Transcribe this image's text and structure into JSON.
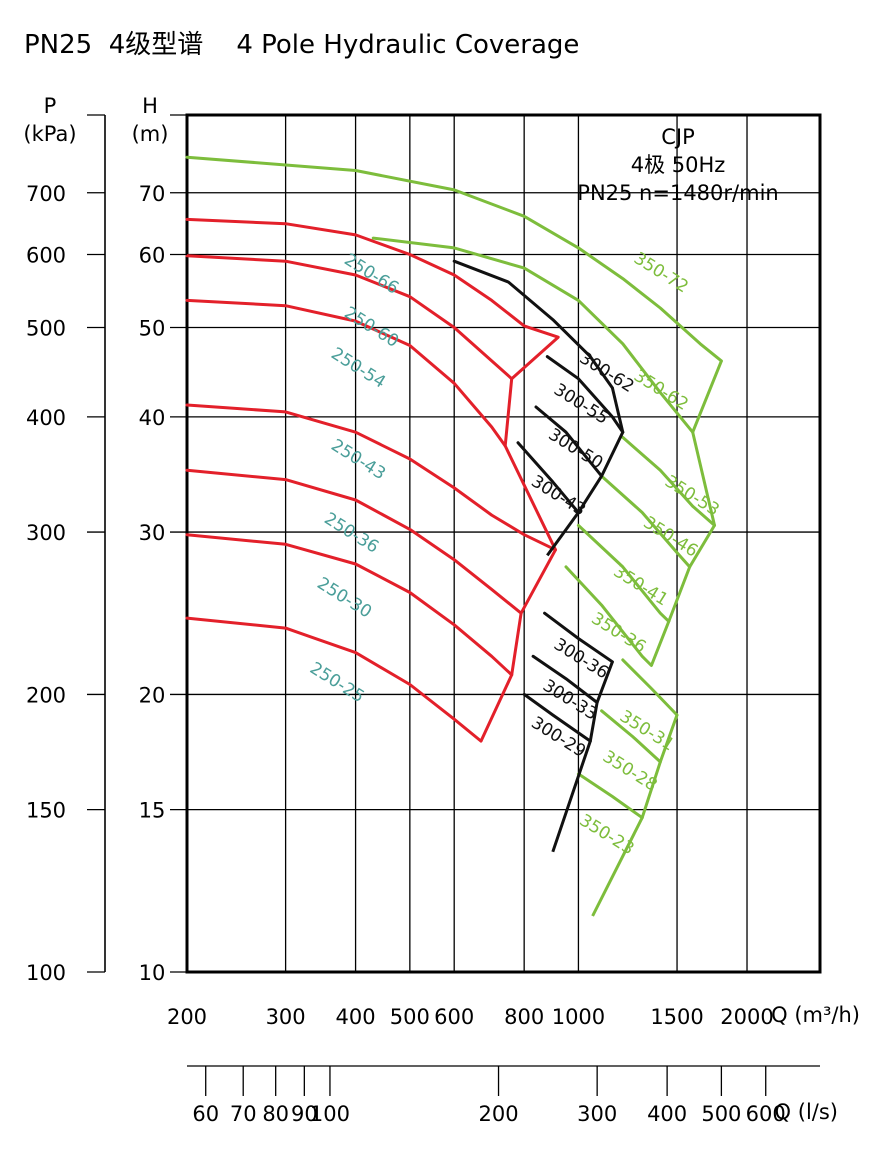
{
  "title": "PN25  4级型谱    4 Pole Hydraulic Coverage",
  "chart_data": {
    "type": "line",
    "scale": "log-log",
    "info": [
      "CJP",
      "4极  50Hz",
      "PN25  n=1480r/min"
    ],
    "x_axis": {
      "unit_label": "Q (m³/h)",
      "range": [
        200,
        2700
      ],
      "ticks": [
        200,
        300,
        400,
        500,
        600,
        800,
        1000,
        1500,
        2000
      ],
      "tick_labels": [
        "200",
        "300",
        "400",
        "500",
        "600",
        "800",
        "1000",
        "1500",
        "2000"
      ],
      "grid": true
    },
    "x2_axis": {
      "unit_label": "Q (l/s)",
      "ticks": [
        60,
        70,
        80,
        90,
        100,
        200,
        300,
        400,
        500,
        600
      ],
      "tick_labels": [
        "60",
        "70",
        "80",
        "90",
        "100",
        "200",
        "300",
        "400",
        "500",
        "600"
      ]
    },
    "y_axis_H": {
      "label": [
        "H",
        "(m)"
      ],
      "range": [
        10,
        85
      ],
      "ticks": [
        10,
        15,
        20,
        30,
        40,
        50,
        60,
        70
      ],
      "tick_labels": [
        "10",
        "15",
        "20",
        "30",
        "40",
        "50",
        "60",
        "70"
      ],
      "grid": true
    },
    "y_axis_P": {
      "label": [
        "P",
        "(kPa)"
      ],
      "ticks": [
        100,
        150,
        200,
        300,
        400,
        500,
        600,
        700
      ],
      "tick_labels": [
        "100",
        "150",
        "200",
        "300",
        "400",
        "500",
        "600",
        "700"
      ]
    },
    "colors": {
      "series_250": "#e3202a",
      "series_300": "#111111",
      "series_350": "#7dbd3c",
      "label_250": "#4a9e99"
    },
    "series_250": [
      {
        "name": "250-66",
        "points": [
          [
            200,
            65.5
          ],
          [
            300,
            64.8
          ],
          [
            400,
            63.0
          ],
          [
            500,
            60.0
          ],
          [
            600,
            57.0
          ],
          [
            700,
            53.5
          ],
          [
            800,
            50.2
          ],
          [
            920,
            48.8
          ]
        ],
        "label_at": [
          380,
          58.8
        ]
      },
      {
        "name": "250-60",
        "points": [
          [
            200,
            59.8
          ],
          [
            300,
            59.0
          ],
          [
            400,
            57.0
          ],
          [
            500,
            54.0
          ],
          [
            600,
            50.0
          ],
          [
            700,
            46.0
          ],
          [
            760,
            44.0
          ]
        ],
        "label_at": [
          380,
          51.5
        ]
      },
      {
        "name": "250-54",
        "points": [
          [
            200,
            53.5
          ],
          [
            300,
            52.8
          ],
          [
            400,
            50.8
          ],
          [
            500,
            47.8
          ],
          [
            600,
            43.5
          ],
          [
            700,
            39.0
          ],
          [
            740,
            37.2
          ]
        ],
        "label_at": [
          360,
          46.5
        ]
      },
      {
        "name": "250-43",
        "points": [
          [
            200,
            41.2
          ],
          [
            300,
            40.5
          ],
          [
            400,
            38.5
          ],
          [
            500,
            36.0
          ],
          [
            600,
            33.5
          ],
          [
            700,
            31.3
          ],
          [
            800,
            29.8
          ],
          [
            910,
            28.7
          ]
        ],
        "label_at": [
          360,
          37.0
        ]
      },
      {
        "name": "250-36",
        "points": [
          [
            200,
            35.0
          ],
          [
            300,
            34.2
          ],
          [
            400,
            32.5
          ],
          [
            500,
            30.2
          ],
          [
            600,
            28.0
          ],
          [
            700,
            26.0
          ],
          [
            790,
            24.5
          ]
        ],
        "label_at": [
          350,
          30.8
        ]
      },
      {
        "name": "250-30",
        "points": [
          [
            200,
            29.8
          ],
          [
            300,
            29.1
          ],
          [
            400,
            27.7
          ],
          [
            500,
            25.8
          ],
          [
            600,
            23.8
          ],
          [
            700,
            22.0
          ],
          [
            760,
            21.0
          ]
        ],
        "label_at": [
          340,
          26.2
        ]
      },
      {
        "name": "250-25",
        "points": [
          [
            200,
            24.2
          ],
          [
            300,
            23.6
          ],
          [
            400,
            22.2
          ],
          [
            500,
            20.5
          ],
          [
            600,
            18.8
          ],
          [
            670,
            17.8
          ]
        ],
        "label_at": [
          330,
          21.2
        ]
      }
    ],
    "series_300": [
      {
        "name": "300-62",
        "points": [
          [
            600,
            59.0
          ],
          [
            750,
            56.0
          ],
          [
            900,
            51.0
          ],
          [
            1050,
            46.5
          ],
          [
            1150,
            43.0
          ]
        ],
        "label_at": [
          1000,
          46.0
        ]
      },
      {
        "name": "300-55",
        "points": [
          [
            880,
            46.5
          ],
          [
            1000,
            44.0
          ],
          [
            1150,
            40.0
          ],
          [
            1200,
            38.5
          ]
        ],
        "label_at": [
          900,
          42.5
        ]
      },
      {
        "name": "300-50",
        "points": [
          [
            840,
            41.0
          ],
          [
            950,
            38.5
          ],
          [
            1100,
            34.5
          ]
        ],
        "label_at": [
          880,
          38.0
        ]
      },
      {
        "name": "300-43",
        "points": [
          [
            780,
            37.5
          ],
          [
            900,
            34.0
          ],
          [
            1000,
            31.5
          ]
        ],
        "label_at": [
          820,
          33.8
        ]
      },
      {
        "name": "300-36",
        "points": [
          [
            870,
            24.5
          ],
          [
            1000,
            23.0
          ],
          [
            1150,
            21.7
          ]
        ],
        "label_at": [
          900,
          22.5
        ]
      },
      {
        "name": "300-33",
        "points": [
          [
            830,
            22.0
          ],
          [
            950,
            20.8
          ],
          [
            1080,
            19.6
          ]
        ],
        "label_at": [
          860,
          20.3
        ]
      },
      {
        "name": "300-29",
        "points": [
          [
            800,
            20.0
          ],
          [
            900,
            19.0
          ],
          [
            1050,
            17.8
          ]
        ],
        "label_at": [
          820,
          18.5
        ]
      }
    ],
    "series_350": [
      {
        "name": "350-72",
        "points": [
          [
            200,
            76.5
          ],
          [
            400,
            74.0
          ],
          [
            600,
            70.5
          ],
          [
            800,
            66.0
          ],
          [
            1000,
            61.0
          ],
          [
            1200,
            56.5
          ],
          [
            1400,
            52.5
          ],
          [
            1650,
            48.0
          ],
          [
            1800,
            46.0
          ]
        ],
        "label_at": [
          1250,
          59.0
        ]
      },
      {
        "name": "350-62",
        "points": [
          [
            430,
            62.5
          ],
          [
            600,
            61.0
          ],
          [
            800,
            58.0
          ],
          [
            1000,
            53.5
          ],
          [
            1200,
            48.0
          ],
          [
            1400,
            42.5
          ],
          [
            1600,
            38.5
          ]
        ],
        "label_at": [
          1250,
          44.0
        ]
      },
      {
        "name": "350-53",
        "points": [
          [
            1200,
            38.0
          ],
          [
            1400,
            35.0
          ],
          [
            1600,
            32.0
          ],
          [
            1750,
            30.5
          ]
        ],
        "label_at": [
          1420,
          33.8
        ]
      },
      {
        "name": "350-46",
        "points": [
          [
            1100,
            34.5
          ],
          [
            1300,
            31.5
          ],
          [
            1500,
            28.5
          ],
          [
            1580,
            27.5
          ]
        ],
        "label_at": [
          1300,
          30.5
        ]
      },
      {
        "name": "350-41",
        "points": [
          [
            1000,
            30.5
          ],
          [
            1200,
            27.5
          ],
          [
            1400,
            24.5
          ],
          [
            1450,
            24.0
          ]
        ],
        "label_at": [
          1150,
          27.0
        ]
      },
      {
        "name": "350-36",
        "points": [
          [
            950,
            27.5
          ],
          [
            1100,
            25.0
          ],
          [
            1300,
            22.0
          ],
          [
            1350,
            21.5
          ]
        ],
        "label_at": [
          1050,
          24.0
        ]
      },
      {
        "name": "350-31",
        "points": [
          [
            1200,
            21.8
          ],
          [
            1350,
            20.3
          ],
          [
            1500,
            19.0
          ]
        ],
        "label_at": [
          1180,
          18.8
        ]
      },
      {
        "name": "350-28",
        "points": [
          [
            1100,
            19.2
          ],
          [
            1250,
            18.0
          ],
          [
            1400,
            16.9
          ]
        ],
        "label_at": [
          1100,
          17.0
        ]
      },
      {
        "name": "350-23",
        "points": [
          [
            1000,
            16.4
          ],
          [
            1150,
            15.5
          ],
          [
            1300,
            14.7
          ]
        ],
        "label_at": [
          1000,
          14.5
        ]
      }
    ],
    "boundaries": [
      {
        "group": "250",
        "points": [
          [
            920,
            48.8
          ],
          [
            760,
            44.0
          ],
          [
            740,
            37.2
          ],
          [
            910,
            28.7
          ],
          [
            790,
            24.5
          ],
          [
            760,
            21.0
          ],
          [
            670,
            17.8
          ]
        ]
      },
      {
        "group": "300",
        "points": [
          [
            1150,
            43.0
          ],
          [
            1200,
            38.5
          ],
          [
            1100,
            34.5
          ],
          [
            1000,
            31.5
          ]
        ]
      },
      {
        "group": "300",
        "points": [
          [
            1000,
            31.5
          ],
          [
            880,
            28.3
          ]
        ]
      },
      {
        "group": "300",
        "points": [
          [
            1150,
            21.7
          ],
          [
            1080,
            19.6
          ],
          [
            1050,
            17.8
          ],
          [
            900,
            13.5
          ]
        ]
      },
      {
        "group": "350",
        "points": [
          [
            1800,
            46.0
          ],
          [
            1600,
            38.5
          ],
          [
            1750,
            30.5
          ],
          [
            1580,
            27.5
          ],
          [
            1450,
            24.0
          ],
          [
            1350,
            21.5
          ]
        ]
      },
      {
        "group": "350",
        "points": [
          [
            1500,
            19.0
          ],
          [
            1400,
            16.9
          ],
          [
            1300,
            14.7
          ],
          [
            1060,
            11.5
          ]
        ]
      }
    ]
  }
}
